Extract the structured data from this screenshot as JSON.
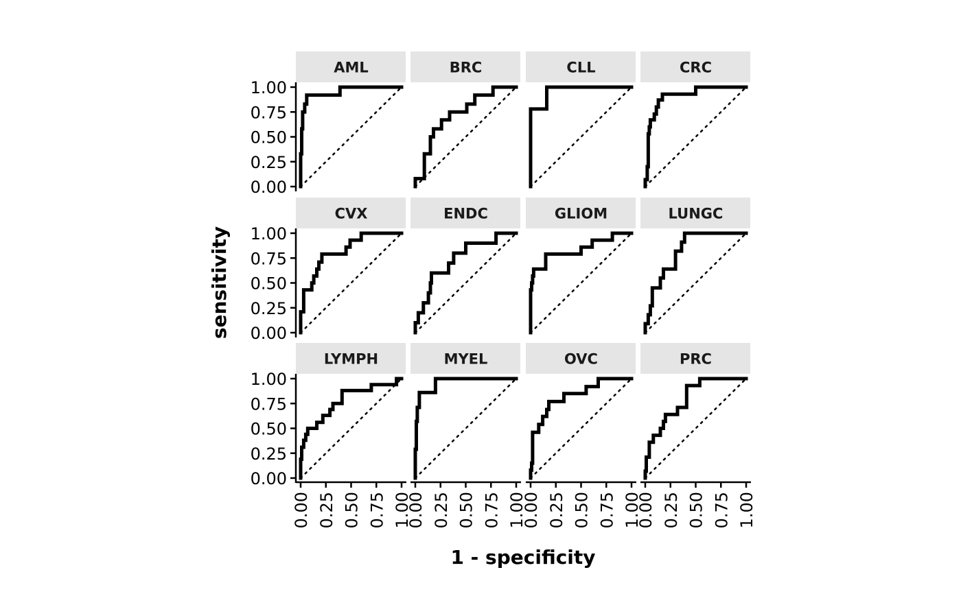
{
  "chart_data": {
    "type": "line",
    "facet_layout": "3 rows x 4 columns",
    "xlabel": "1 - specificity",
    "ylabel": "sensitivity",
    "xlim": [
      0,
      1
    ],
    "ylim": [
      0,
      1
    ],
    "x_ticks": [
      "0.00",
      "0.25",
      "0.50",
      "0.75",
      "1.00"
    ],
    "y_ticks": [
      "0.00",
      "0.25",
      "0.50",
      "0.75",
      "1.00"
    ],
    "line_color": "#000000",
    "reference_line": "dotted diagonal from (0,0) to (1,1)",
    "grid": false,
    "legend": "none",
    "panels": [
      {
        "label": "AML",
        "points": [
          [
            0,
            0
          ],
          [
            0,
            0.33
          ],
          [
            0.01,
            0.33
          ],
          [
            0.01,
            0.58
          ],
          [
            0.02,
            0.58
          ],
          [
            0.02,
            0.75
          ],
          [
            0.04,
            0.75
          ],
          [
            0.04,
            0.83
          ],
          [
            0.06,
            0.83
          ],
          [
            0.06,
            0.92
          ],
          [
            0.39,
            0.92
          ],
          [
            0.39,
            1
          ],
          [
            1,
            1
          ]
        ]
      },
      {
        "label": "BRC",
        "points": [
          [
            0,
            0
          ],
          [
            0,
            0.08
          ],
          [
            0.09,
            0.08
          ],
          [
            0.09,
            0.33
          ],
          [
            0.15,
            0.33
          ],
          [
            0.15,
            0.5
          ],
          [
            0.18,
            0.5
          ],
          [
            0.18,
            0.58
          ],
          [
            0.26,
            0.58
          ],
          [
            0.26,
            0.67
          ],
          [
            0.34,
            0.67
          ],
          [
            0.34,
            0.75
          ],
          [
            0.51,
            0.75
          ],
          [
            0.51,
            0.83
          ],
          [
            0.59,
            0.83
          ],
          [
            0.59,
            0.92
          ],
          [
            0.77,
            0.92
          ],
          [
            0.77,
            1
          ],
          [
            1,
            1
          ]
        ]
      },
      {
        "label": "CLL",
        "points": [
          [
            0,
            0
          ],
          [
            0,
            0.78
          ],
          [
            0.16,
            0.78
          ],
          [
            0.16,
            1
          ],
          [
            1,
            1
          ]
        ]
      },
      {
        "label": "CRC",
        "points": [
          [
            0,
            0
          ],
          [
            0,
            0.07
          ],
          [
            0.02,
            0.07
          ],
          [
            0.02,
            0.2
          ],
          [
            0.03,
            0.2
          ],
          [
            0.03,
            0.53
          ],
          [
            0.04,
            0.53
          ],
          [
            0.04,
            0.6
          ],
          [
            0.05,
            0.6
          ],
          [
            0.05,
            0.67
          ],
          [
            0.09,
            0.67
          ],
          [
            0.09,
            0.73
          ],
          [
            0.11,
            0.73
          ],
          [
            0.11,
            0.8
          ],
          [
            0.13,
            0.8
          ],
          [
            0.13,
            0.87
          ],
          [
            0.17,
            0.87
          ],
          [
            0.17,
            0.93
          ],
          [
            0.5,
            0.93
          ],
          [
            0.5,
            1
          ],
          [
            1,
            1
          ]
        ]
      },
      {
        "label": "CVX",
        "points": [
          [
            0,
            0
          ],
          [
            0,
            0.21
          ],
          [
            0.03,
            0.21
          ],
          [
            0.03,
            0.43
          ],
          [
            0.11,
            0.43
          ],
          [
            0.11,
            0.5
          ],
          [
            0.13,
            0.5
          ],
          [
            0.13,
            0.57
          ],
          [
            0.16,
            0.57
          ],
          [
            0.16,
            0.64
          ],
          [
            0.18,
            0.64
          ],
          [
            0.18,
            0.71
          ],
          [
            0.21,
            0.71
          ],
          [
            0.21,
            0.79
          ],
          [
            0.45,
            0.79
          ],
          [
            0.45,
            0.86
          ],
          [
            0.49,
            0.86
          ],
          [
            0.49,
            0.93
          ],
          [
            0.6,
            0.93
          ],
          [
            0.6,
            1
          ],
          [
            1,
            1
          ]
        ]
      },
      {
        "label": "ENDC",
        "points": [
          [
            0,
            0
          ],
          [
            0,
            0.1
          ],
          [
            0.03,
            0.1
          ],
          [
            0.03,
            0.2
          ],
          [
            0.08,
            0.2
          ],
          [
            0.08,
            0.3
          ],
          [
            0.13,
            0.3
          ],
          [
            0.13,
            0.4
          ],
          [
            0.15,
            0.4
          ],
          [
            0.15,
            0.5
          ],
          [
            0.16,
            0.5
          ],
          [
            0.16,
            0.6
          ],
          [
            0.33,
            0.6
          ],
          [
            0.33,
            0.7
          ],
          [
            0.38,
            0.7
          ],
          [
            0.38,
            0.8
          ],
          [
            0.5,
            0.8
          ],
          [
            0.5,
            0.9
          ],
          [
            0.8,
            0.9
          ],
          [
            0.8,
            1
          ],
          [
            1,
            1
          ]
        ]
      },
      {
        "label": "GLIOM",
        "points": [
          [
            0,
            0
          ],
          [
            0,
            0.43
          ],
          [
            0.01,
            0.43
          ],
          [
            0.01,
            0.5
          ],
          [
            0.02,
            0.5
          ],
          [
            0.02,
            0.57
          ],
          [
            0.03,
            0.57
          ],
          [
            0.03,
            0.64
          ],
          [
            0.15,
            0.64
          ],
          [
            0.15,
            0.79
          ],
          [
            0.5,
            0.79
          ],
          [
            0.5,
            0.86
          ],
          [
            0.61,
            0.86
          ],
          [
            0.61,
            0.93
          ],
          [
            0.81,
            0.93
          ],
          [
            0.81,
            1
          ],
          [
            1,
            1
          ]
        ]
      },
      {
        "label": "LUNGC",
        "points": [
          [
            0,
            0
          ],
          [
            0,
            0.09
          ],
          [
            0.03,
            0.09
          ],
          [
            0.03,
            0.18
          ],
          [
            0.05,
            0.18
          ],
          [
            0.05,
            0.27
          ],
          [
            0.07,
            0.27
          ],
          [
            0.07,
            0.45
          ],
          [
            0.15,
            0.45
          ],
          [
            0.15,
            0.55
          ],
          [
            0.18,
            0.55
          ],
          [
            0.18,
            0.64
          ],
          [
            0.3,
            0.64
          ],
          [
            0.3,
            0.82
          ],
          [
            0.36,
            0.82
          ],
          [
            0.36,
            0.91
          ],
          [
            0.39,
            0.91
          ],
          [
            0.39,
            1
          ],
          [
            1,
            1
          ]
        ]
      },
      {
        "label": "LYMPH",
        "points": [
          [
            0,
            0
          ],
          [
            0,
            0.19
          ],
          [
            0.01,
            0.19
          ],
          [
            0.01,
            0.31
          ],
          [
            0.03,
            0.31
          ],
          [
            0.03,
            0.38
          ],
          [
            0.05,
            0.38
          ],
          [
            0.05,
            0.44
          ],
          [
            0.07,
            0.44
          ],
          [
            0.07,
            0.5
          ],
          [
            0.16,
            0.5
          ],
          [
            0.16,
            0.56
          ],
          [
            0.22,
            0.56
          ],
          [
            0.22,
            0.63
          ],
          [
            0.29,
            0.63
          ],
          [
            0.29,
            0.69
          ],
          [
            0.32,
            0.69
          ],
          [
            0.32,
            0.75
          ],
          [
            0.41,
            0.75
          ],
          [
            0.41,
            0.88
          ],
          [
            0.7,
            0.88
          ],
          [
            0.7,
            0.94
          ],
          [
            0.95,
            0.94
          ],
          [
            0.95,
            1
          ],
          [
            1,
            1
          ]
        ]
      },
      {
        "label": "MYEL",
        "points": [
          [
            0,
            0
          ],
          [
            0,
            0.29
          ],
          [
            0.01,
            0.29
          ],
          [
            0.01,
            0.57
          ],
          [
            0.02,
            0.57
          ],
          [
            0.02,
            0.71
          ],
          [
            0.04,
            0.71
          ],
          [
            0.04,
            0.86
          ],
          [
            0.2,
            0.86
          ],
          [
            0.2,
            1
          ],
          [
            1,
            1
          ]
        ]
      },
      {
        "label": "OVC",
        "points": [
          [
            0,
            0
          ],
          [
            0,
            0.08
          ],
          [
            0.01,
            0.08
          ],
          [
            0.01,
            0.15
          ],
          [
            0.02,
            0.15
          ],
          [
            0.02,
            0.46
          ],
          [
            0.08,
            0.46
          ],
          [
            0.08,
            0.54
          ],
          [
            0.12,
            0.54
          ],
          [
            0.12,
            0.62
          ],
          [
            0.16,
            0.62
          ],
          [
            0.16,
            0.69
          ],
          [
            0.18,
            0.69
          ],
          [
            0.18,
            0.77
          ],
          [
            0.33,
            0.77
          ],
          [
            0.33,
            0.85
          ],
          [
            0.55,
            0.85
          ],
          [
            0.55,
            0.92
          ],
          [
            0.67,
            0.92
          ],
          [
            0.67,
            1
          ],
          [
            1,
            1
          ]
        ]
      },
      {
        "label": "PRC",
        "points": [
          [
            0,
            0
          ],
          [
            0,
            0.07
          ],
          [
            0.01,
            0.07
          ],
          [
            0.01,
            0.21
          ],
          [
            0.04,
            0.21
          ],
          [
            0.04,
            0.36
          ],
          [
            0.08,
            0.36
          ],
          [
            0.08,
            0.43
          ],
          [
            0.15,
            0.43
          ],
          [
            0.15,
            0.5
          ],
          [
            0.18,
            0.5
          ],
          [
            0.18,
            0.57
          ],
          [
            0.2,
            0.57
          ],
          [
            0.2,
            0.64
          ],
          [
            0.32,
            0.64
          ],
          [
            0.32,
            0.71
          ],
          [
            0.41,
            0.71
          ],
          [
            0.41,
            0.93
          ],
          [
            0.54,
            0.93
          ],
          [
            0.54,
            1
          ],
          [
            1,
            1
          ]
        ]
      }
    ]
  }
}
